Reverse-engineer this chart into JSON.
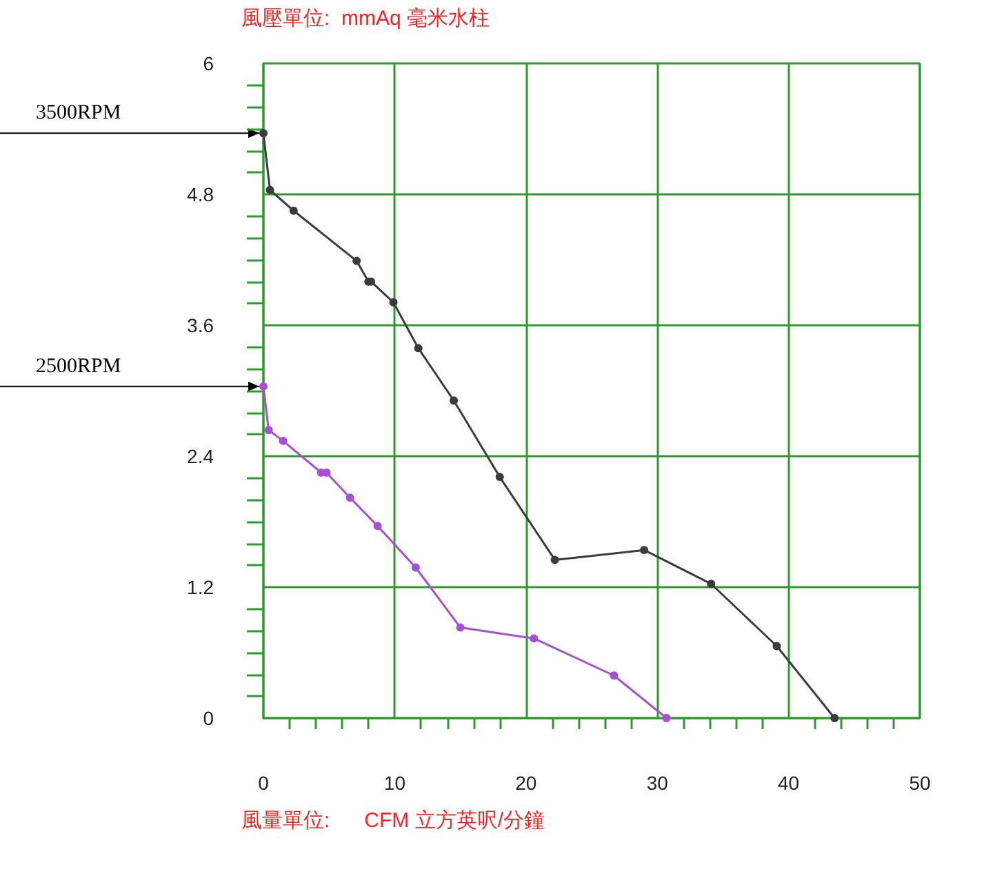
{
  "chart_data": {
    "type": "line",
    "ylabel": "風壓單位:  mmAq 毫米水柱",
    "xlabel": "風量單位:      CFM 立方英呎/分鐘",
    "xlim": [
      0,
      50
    ],
    "xticks": [
      0,
      10,
      20,
      30,
      40,
      50
    ],
    "ylim": [
      0,
      6
    ],
    "yticks": [
      0,
      1.2,
      2.4,
      3.6,
      4.8,
      6
    ],
    "grid": true,
    "marker": "circle",
    "line_style": "solid",
    "series": [
      {
        "color": "#3a3a40",
        "x": [
          0,
          0.5,
          2.3,
          7.1,
          8.0,
          8.2,
          9.9,
          11.8,
          14.5,
          18.0,
          22.2,
          29.0,
          34.1,
          39.1,
          43.5
        ],
        "values": [
          5.36,
          4.84,
          4.65,
          4.19,
          4.0,
          4.0,
          3.81,
          3.39,
          2.91,
          2.21,
          1.45,
          1.54,
          1.23,
          0.66,
          0
        ]
      },
      {
        "color": "#a54fd6",
        "x": [
          0,
          0.4,
          1.5,
          4.4,
          4.8,
          6.6,
          8.7,
          11.6,
          15.0,
          20.6,
          26.7,
          30.7
        ],
        "values": [
          3.04,
          2.64,
          2.54,
          2.25,
          2.25,
          2.02,
          1.76,
          1.38,
          0.83,
          0.73,
          0.39,
          0
        ]
      }
    ],
    "annotations": [
      "3500RPM",
      "2500RPM"
    ]
  }
}
